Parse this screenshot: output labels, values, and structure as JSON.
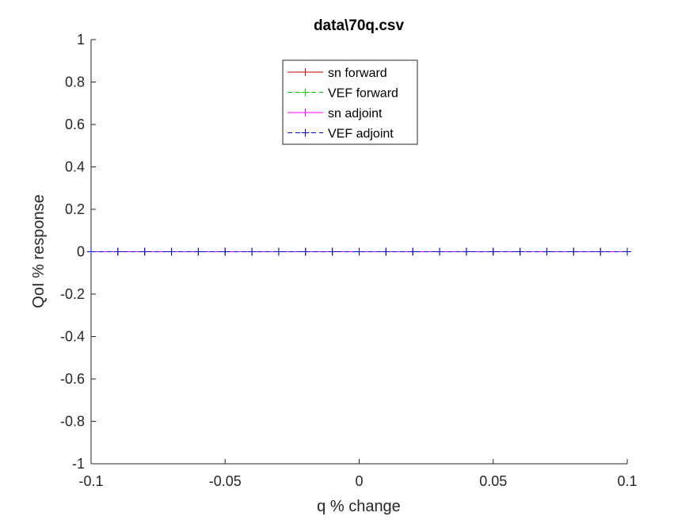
{
  "chart_data": {
    "type": "line",
    "title": "data\\70q.csv",
    "xlabel": "q % change",
    "ylabel": "QoI % response",
    "xlim": [
      -0.1,
      0.1
    ],
    "ylim": [
      -1,
      1
    ],
    "x_ticks": [
      -0.1,
      -0.05,
      0,
      0.05,
      0.1
    ],
    "x_tick_labels": [
      "-0.1",
      "-0.05",
      "0",
      "0.05",
      "0.1"
    ],
    "y_ticks": [
      -1,
      -0.8,
      -0.6,
      -0.4,
      -0.2,
      0,
      0.2,
      0.4,
      0.6,
      0.8,
      1
    ],
    "y_tick_labels": [
      "-1",
      "-0.8",
      "-0.6",
      "-0.4",
      "-0.2",
      "0",
      "0.2",
      "0.4",
      "0.6",
      "0.8",
      "1"
    ],
    "grid": false,
    "legend_position": "top-center",
    "x": [
      -0.1,
      -0.09,
      -0.08,
      -0.07,
      -0.06,
      -0.05,
      -0.04,
      -0.03,
      -0.02,
      -0.01,
      0,
      0.01,
      0.02,
      0.03,
      0.04,
      0.05,
      0.06,
      0.07,
      0.08,
      0.09,
      0.1
    ],
    "series": [
      {
        "name": "sn forward",
        "color": "#cc0000",
        "line_style": "solid",
        "marker": "+",
        "values": [
          0,
          0,
          0,
          0,
          0,
          0,
          0,
          0,
          0,
          0,
          0,
          0,
          0,
          0,
          0,
          0,
          0,
          0,
          0,
          0,
          0
        ]
      },
      {
        "name": "VEF forward",
        "color": "#00cc00",
        "line_style": "dashed",
        "marker": "+",
        "values": [
          0,
          0,
          0,
          0,
          0,
          0,
          0,
          0,
          0,
          0,
          0,
          0,
          0,
          0,
          0,
          0,
          0,
          0,
          0,
          0,
          0
        ]
      },
      {
        "name": "sn adjoint",
        "color": "#ff00ff",
        "line_style": "solid",
        "marker": "+",
        "values": [
          0,
          0,
          0,
          0,
          0,
          0,
          0,
          0,
          0,
          0,
          0,
          0,
          0,
          0,
          0,
          0,
          0,
          0,
          0,
          0,
          0
        ]
      },
      {
        "name": "VEF adjoint",
        "color": "#0000cc",
        "line_style": "dashed",
        "marker": "+",
        "values": [
          0,
          0,
          0,
          0,
          0,
          0,
          0,
          0,
          0,
          0,
          0,
          0,
          0,
          0,
          0,
          0,
          0,
          0,
          0,
          0,
          0
        ]
      }
    ]
  }
}
